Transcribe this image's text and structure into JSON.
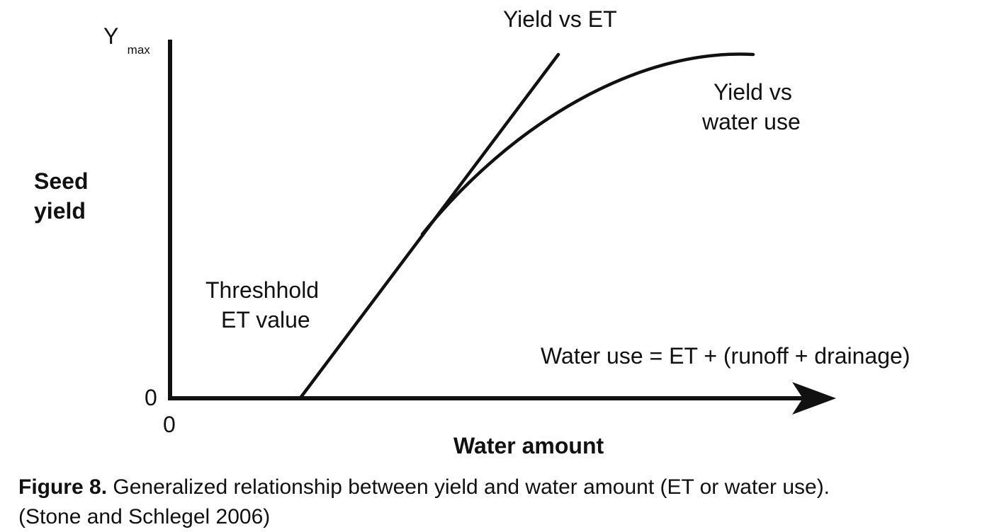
{
  "diagram": {
    "y_axis_label_line1": "Seed",
    "y_axis_label_line2": "yield",
    "y_max_label_main": "Y",
    "y_max_label_sub": "max",
    "y_zero_label": "0",
    "x_zero_label": "0",
    "x_axis_label": "Water amount",
    "curve_et_label": "Yield vs ET",
    "curve_water_use_label_line1": "Yield vs",
    "curve_water_use_label_line2": "water use",
    "threshold_label_line1": "Threshhold",
    "threshold_label_line2": "ET value",
    "equation_label": "Water use = ET + (runoff + drainage)",
    "line_color": "#111111"
  },
  "caption": {
    "lead": "Figure 8.",
    "text": " Generalized relationship between yield and water amount (ET or water use).",
    "citation": "(Stone and Schlegel 2006)"
  }
}
